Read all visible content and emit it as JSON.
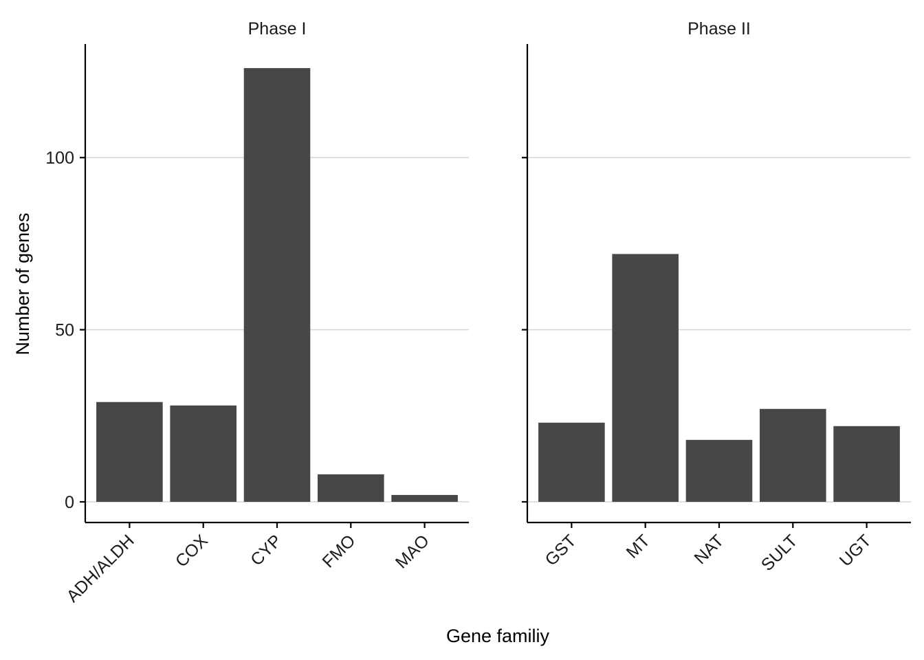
{
  "chart_data": {
    "type": "bar",
    "xlabel": "Gene familiy",
    "ylabel": "Number of genes",
    "ylim": [
      -6,
      133
    ],
    "yticks": [
      0,
      50,
      100
    ],
    "grid": "horizontal major",
    "colors": {
      "bar": "#474747",
      "grid": "#d9d9d9",
      "axis": "#000000"
    },
    "panels": [
      {
        "title": "Phase I",
        "categories": [
          "ADH/ALDH",
          "COX",
          "CYP",
          "FMO",
          "MAO"
        ],
        "values": [
          29,
          28,
          126,
          8,
          2
        ]
      },
      {
        "title": "Phase II",
        "categories": [
          "GST",
          "MT",
          "NAT",
          "SULT",
          "UGT"
        ],
        "values": [
          23,
          72,
          18,
          27,
          22
        ]
      }
    ]
  }
}
